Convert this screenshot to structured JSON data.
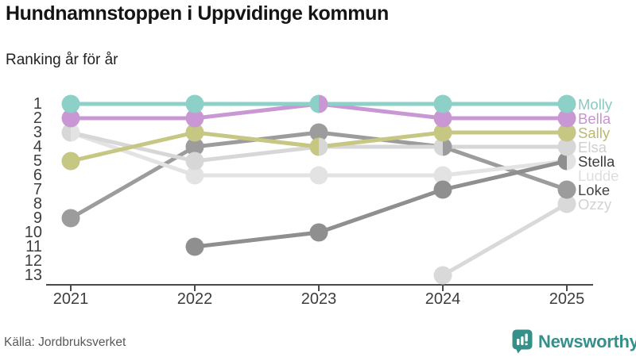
{
  "header": {
    "title": "Hundnamnstoppen i Uppvidinge kommun",
    "subtitle": "Ranking år för år"
  },
  "chart_data": {
    "type": "line",
    "subtype": "bump-ranking",
    "title": "Hundnamnstoppen i Uppvidinge kommun",
    "subtitle": "Ranking år för år",
    "x": [
      "2021",
      "2022",
      "2023",
      "2024",
      "2025"
    ],
    "y_ticks": [
      1,
      2,
      3,
      4,
      5,
      6,
      7,
      8,
      9,
      10,
      11,
      12,
      13
    ],
    "y_axis_inverted": true,
    "grid": false,
    "legend_position": "right-of-last-point",
    "axis_color": "#4a4a4a",
    "tick_label_color": "#3d3d3d",
    "series": [
      {
        "name": "Molly",
        "color": "#8dd0c8",
        "label_color": "#8cc9c3",
        "values": [
          1,
          1,
          1,
          1,
          1
        ]
      },
      {
        "name": "Bella",
        "color": "#c998d4",
        "label_color": "#c793d2",
        "values": [
          2,
          2,
          1,
          2,
          2
        ]
      },
      {
        "name": "Sally",
        "color": "#c6c783",
        "label_color": "#b9ba6e",
        "values": [
          5,
          3,
          4,
          3,
          3
        ]
      },
      {
        "name": "Elsa",
        "color": "#d7d7d7",
        "label_color": "#cfcfcf",
        "values": [
          3,
          5,
          4,
          4,
          4
        ]
      },
      {
        "name": "Stella",
        "color": "#8f8f8f",
        "label_color": "#3e3e3e",
        "values": [
          null,
          11,
          10,
          7,
          5
        ]
      },
      {
        "name": "Ludde",
        "color": "#e3e3e3",
        "label_color": "#dedede",
        "values": [
          3,
          6,
          6,
          6,
          5
        ]
      },
      {
        "name": "Loke",
        "color": "#9c9c9c",
        "label_color": "#434343",
        "values": [
          9,
          4,
          3,
          4,
          7
        ]
      },
      {
        "name": "Ozzy",
        "color": "#d9d9d9",
        "label_color": "#d2d2d2",
        "values": [
          null,
          null,
          null,
          13,
          8
        ]
      }
    ],
    "ties": [
      {
        "year": "2021",
        "rank": 3,
        "names": [
          "Elsa",
          "Ludde"
        ]
      },
      {
        "year": "2023",
        "rank": 1,
        "names": [
          "Molly",
          "Bella"
        ]
      },
      {
        "year": "2023",
        "rank": 4,
        "names": [
          "Sally",
          "Elsa"
        ]
      },
      {
        "year": "2024",
        "rank": 4,
        "names": [
          "Elsa",
          "Loke"
        ]
      },
      {
        "year": "2025",
        "rank": 5,
        "names": [
          "Stella",
          "Ludde"
        ]
      }
    ]
  },
  "footer": {
    "source": "Källa: Jordbruksverket",
    "brand": "Newsworthy",
    "brand_color": "#35908a",
    "logo_icon": "bar-chart-speech-bubble-icon"
  }
}
